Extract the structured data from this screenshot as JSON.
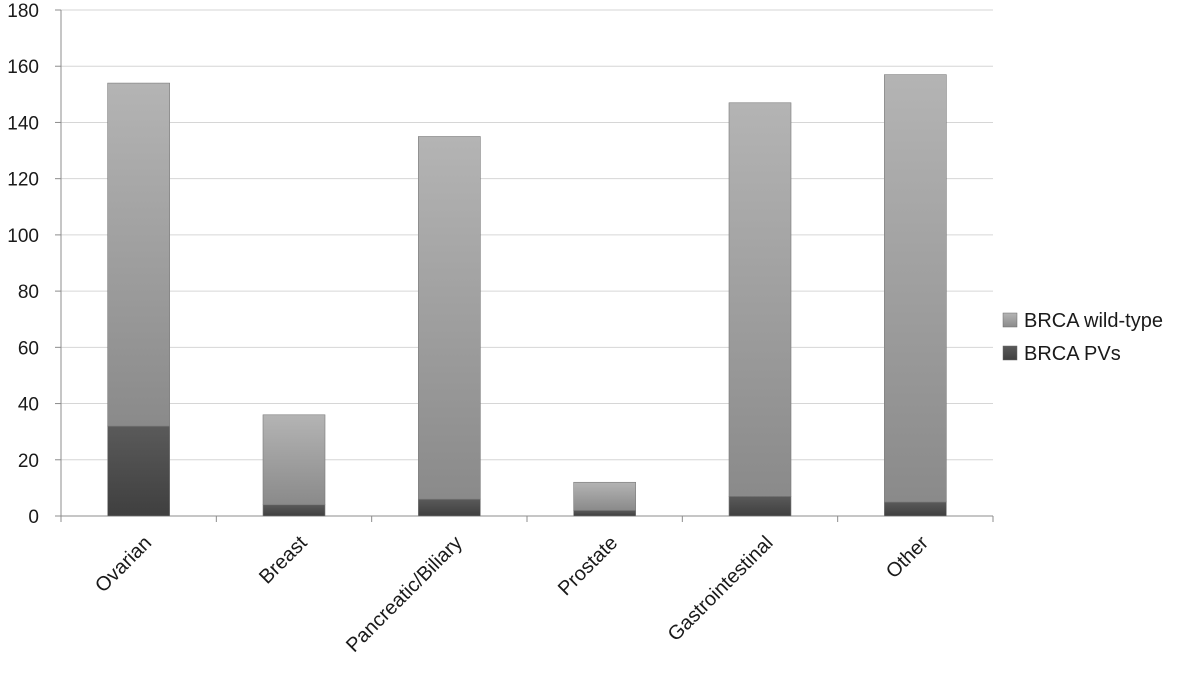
{
  "chart_data": {
    "type": "bar",
    "stacked": true,
    "title": "",
    "xlabel": "",
    "ylabel": "",
    "categories": [
      "Ovarian",
      "Breast",
      "Pancreatic/Biliary",
      "Prostate",
      "Gastrointestinal",
      "Other"
    ],
    "series": [
      {
        "name": "BRCA PVs",
        "values": [
          32,
          4,
          6,
          2,
          7,
          5
        ],
        "color": "#4d4d4d"
      },
      {
        "name": "BRCA wild-type",
        "values": [
          122,
          32,
          129,
          10,
          140,
          152
        ],
        "color": "#9a9a9a"
      }
    ],
    "ylim": [
      0,
      180
    ],
    "yticks": [
      0,
      20,
      40,
      60,
      80,
      100,
      120,
      140,
      160,
      180
    ],
    "grid": true,
    "legend": "right",
    "legend_order": [
      "BRCA wild-type",
      "BRCA PVs"
    ]
  }
}
